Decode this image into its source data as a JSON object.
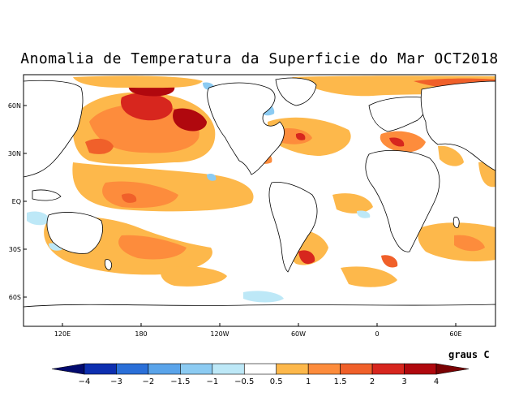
{
  "title": "Anomalia de Temperatura da Superficie do Mar OCT2018",
  "units": "graus C",
  "colors": {
    "land": "#ffffff",
    "coast": "#000000",
    "warm_05_1": "#fdb84b",
    "warm_1_15": "#fd8c3c",
    "warm_15_2": "#f0602a",
    "warm_2_3": "#d7261e",
    "warm_3_4": "#b0080e",
    "warm_gt4": "#7a0203",
    "cool_m05_m1": "#bde8f7",
    "cool_m1_m15": "#8ccbf2",
    "cool_m15_m2": "#5aa4ea",
    "cool_m2_m3": "#2a6fd8",
    "cool_m3_m4": "#0d2fb0",
    "cool_lt_m4": "#020a6e"
  },
  "axes": {
    "lat_labels": [
      "60N",
      "30N",
      "EQ",
      "30S",
      "60S"
    ],
    "lon_labels": [
      "120E",
      "180",
      "120W",
      "60W",
      "0",
      "60E"
    ]
  },
  "colorbar": {
    "labels": [
      "−4",
      "−3",
      "−2",
      "−1.5",
      "−1",
      "−0.5",
      "0.5",
      "1",
      "1.5",
      "2",
      "3",
      "4"
    ],
    "colors": [
      "#020a6e",
      "#0d2fb0",
      "#2a6fd8",
      "#5aa4ea",
      "#8ccbf2",
      "#bde8f7",
      "#ffffff",
      "#fdb84b",
      "#fd8c3c",
      "#f0602a",
      "#d7261e",
      "#b0080e",
      "#7a0203"
    ]
  }
}
